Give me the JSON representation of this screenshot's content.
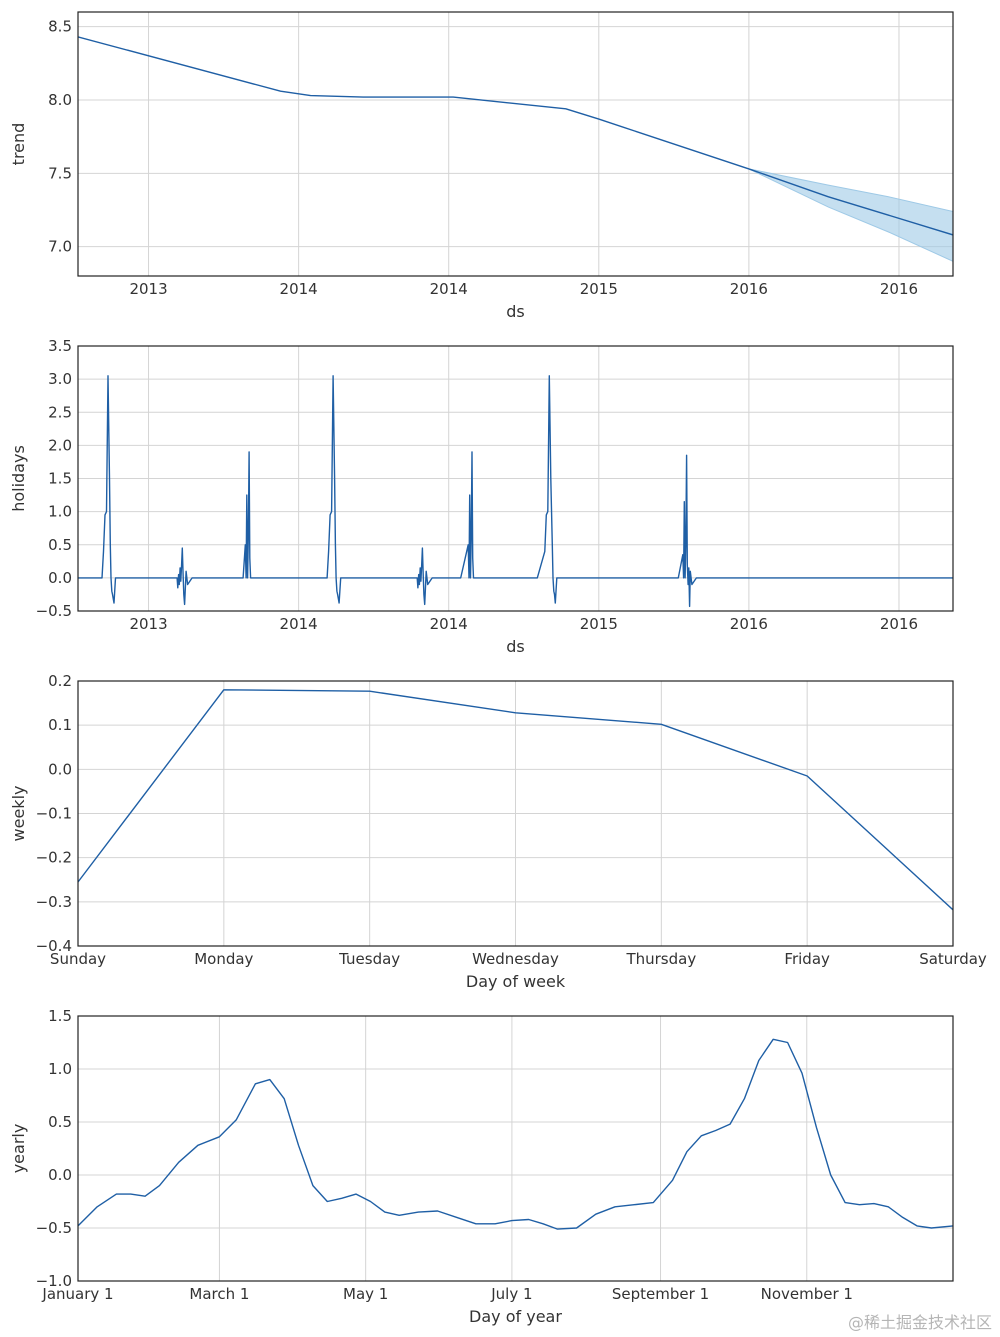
{
  "colors": {
    "line": "#1f5fa5",
    "band": "#9ec9e6",
    "grid": "#d4d4d4",
    "frame": "#222222"
  },
  "watermark": "@稀土掘金技术社区",
  "chart_data": [
    {
      "id": "trend",
      "type": "line",
      "ylabel": "trend",
      "xlabel": "ds",
      "xlim": [
        0,
        5.83
      ],
      "ylim": [
        6.8,
        8.6
      ],
      "xtick_labels": [
        "2013",
        "2014",
        "2014",
        "2015",
        "2016",
        "2016"
      ],
      "xtick_positions": [
        0.47,
        1.47,
        2.47,
        3.47,
        4.47,
        5.47
      ],
      "ytick_labels": [
        "7.0",
        "7.5",
        "8.0",
        "8.5"
      ],
      "ytick_values": [
        7.0,
        7.5,
        8.0,
        8.5
      ],
      "series": [
        {
          "name": "trend",
          "x": [
            0,
            1.35,
            1.55,
            1.9,
            2.5,
            3.25,
            3.47,
            4.47,
            5.0,
            5.83
          ],
          "y": [
            8.43,
            8.06,
            8.03,
            8.02,
            8.02,
            7.94,
            7.87,
            7.53,
            7.34,
            7.08
          ]
        }
      ],
      "uncertainty_band": {
        "x": [
          4.47,
          5.0,
          5.4,
          5.83
        ],
        "upper": [
          7.53,
          7.42,
          7.34,
          7.24
        ],
        "lower": [
          7.53,
          7.27,
          7.1,
          6.9
        ]
      }
    },
    {
      "id": "holidays",
      "type": "line",
      "ylabel": "holidays",
      "xlabel": "ds",
      "xlim": [
        0,
        5.83
      ],
      "ylim": [
        -0.5,
        3.5
      ],
      "xtick_labels": [
        "2013",
        "2014",
        "2014",
        "2015",
        "2016",
        "2016"
      ],
      "xtick_positions": [
        0.47,
        1.47,
        2.47,
        3.47,
        4.47,
        5.47
      ],
      "ytick_labels": [
        "−0.5",
        "0.0",
        "0.5",
        "1.0",
        "1.5",
        "2.0",
        "2.5",
        "3.0",
        "3.5"
      ],
      "ytick_values": [
        -0.5,
        0,
        0.5,
        1.0,
        1.5,
        2.0,
        2.5,
        3.0,
        3.5
      ],
      "series": [
        {
          "name": "holidays",
          "x": [
            0,
            0.16,
            0.17,
            0.18,
            0.19,
            0.2,
            0.21,
            0.215,
            0.22,
            0.225,
            0.23,
            0.24,
            0.25,
            0.26,
            0.27,
            0.28,
            0.29,
            0.3,
            0.6,
            0.66,
            0.665,
            0.67,
            0.675,
            0.68,
            0.685,
            0.69,
            0.695,
            0.7,
            0.705,
            0.71,
            0.72,
            0.73,
            0.76,
            1.1,
            1.115,
            1.12,
            1.125,
            1.13,
            1.135,
            1.14,
            1.145,
            1.15,
            1.155,
            1.16,
            1.17,
            1.2,
            1.61,
            1.66,
            1.67,
            1.68,
            1.69,
            1.7,
            1.71,
            1.715,
            1.72,
            1.725,
            1.73,
            1.74,
            1.75,
            1.76,
            1.77,
            1.78,
            1.79,
            1.8,
            2.2,
            2.26,
            2.265,
            2.27,
            2.275,
            2.28,
            2.285,
            2.29,
            2.295,
            2.3,
            2.305,
            2.31,
            2.32,
            2.33,
            2.36,
            2.55,
            2.6,
            2.605,
            2.61,
            2.615,
            2.62,
            2.625,
            2.63,
            2.635,
            2.64,
            2.645,
            2.65,
            2.66,
            2.7,
            3.06,
            3.11,
            3.12,
            3.13,
            3.14,
            3.15,
            3.16,
            3.165,
            3.17,
            3.175,
            3.18,
            3.19,
            3.2,
            3.21,
            3.22,
            3.23,
            3.24,
            3.25,
            4.0,
            4.03,
            4.035,
            4.04,
            4.045,
            4.05,
            4.055,
            4.06,
            4.065,
            4.07,
            4.075,
            4.08,
            4.09,
            4.12,
            5.83
          ],
          "y": [
            0,
            0,
            0.4,
            0.95,
            1.0,
            3.05,
            1.5,
            0.5,
            0.0,
            -0.2,
            -0.25,
            -0.38,
            0.0,
            0.0,
            0.0,
            0.0,
            0.0,
            0.0,
            0.0,
            0.0,
            -0.15,
            0.05,
            -0.1,
            0.15,
            -0.05,
            0.2,
            0.45,
            0.05,
            -0.25,
            -0.4,
            0.1,
            -0.1,
            0.0,
            0.0,
            0.5,
            0.0,
            1.25,
            0.0,
            0.6,
            1.9,
            0.3,
            0.0,
            0.0,
            0.0,
            0.0,
            0.0,
            0.0,
            0.0,
            0.4,
            0.95,
            1.0,
            3.05,
            1.5,
            0.5,
            0.0,
            -0.2,
            -0.25,
            -0.38,
            0.0,
            0.0,
            0.0,
            0.0,
            0.0,
            0.0,
            0.0,
            0.0,
            -0.15,
            0.05,
            -0.1,
            0.15,
            -0.05,
            0.2,
            0.45,
            0.05,
            -0.25,
            -0.4,
            0.1,
            -0.1,
            0.0,
            0.0,
            0.5,
            0.0,
            1.25,
            0.0,
            0.6,
            1.9,
            0.3,
            0.0,
            0.0,
            0.0,
            0.0,
            0.0,
            0.0,
            0.0,
            0.4,
            0.95,
            1.0,
            3.05,
            1.5,
            0.5,
            0.0,
            -0.2,
            -0.25,
            -0.38,
            0.0,
            0.0,
            0.0,
            0.0,
            0.0,
            0.0,
            0.0,
            0.0,
            0.35,
            0.0,
            1.15,
            0.0,
            0.5,
            1.85,
            0.2,
            -0.1,
            0.15,
            -0.43,
            0.1,
            -0.1,
            0.0,
            0.0
          ]
        }
      ]
    },
    {
      "id": "weekly",
      "type": "line",
      "ylabel": "weekly",
      "xlabel": "Day of week",
      "xlim": [
        0,
        6
      ],
      "ylim": [
        -0.4,
        0.2
      ],
      "xtick_labels": [
        "Sunday",
        "Monday",
        "Tuesday",
        "Wednesday",
        "Thursday",
        "Friday",
        "Saturday"
      ],
      "xtick_positions": [
        0,
        1,
        2,
        3,
        4,
        5,
        6
      ],
      "ytick_labels": [
        "−0.4",
        "−0.3",
        "−0.2",
        "−0.1",
        "0.0",
        "0.1",
        "0.2"
      ],
      "ytick_values": [
        -0.4,
        -0.3,
        -0.2,
        -0.1,
        0.0,
        0.1,
        0.2
      ],
      "series": [
        {
          "name": "weekly",
          "x": [
            0,
            1,
            2,
            3,
            4,
            5,
            6
          ],
          "y": [
            -0.255,
            0.18,
            0.177,
            0.128,
            0.102,
            -0.015,
            -0.318
          ]
        }
      ]
    },
    {
      "id": "yearly",
      "type": "line",
      "ylabel": "yearly",
      "xlabel": "Day of year",
      "xlim": [
        0,
        365
      ],
      "ylim": [
        -1.0,
        1.5
      ],
      "xtick_labels": [
        "January 1",
        "March 1",
        "May 1",
        "July 1",
        "September 1",
        "November 1"
      ],
      "xtick_positions": [
        0,
        59,
        120,
        181,
        243,
        304
      ],
      "ytick_labels": [
        "−1.0",
        "−0.5",
        "0.0",
        "0.5",
        "1.0",
        "1.5"
      ],
      "ytick_values": [
        -1.0,
        -0.5,
        0.0,
        0.5,
        1.0,
        1.5
      ],
      "series": [
        {
          "name": "yearly",
          "x": [
            0,
            8,
            16,
            22,
            28,
            34,
            42,
            50,
            59,
            66,
            74,
            80,
            86,
            92,
            98,
            104,
            110,
            116,
            122,
            128,
            134,
            142,
            150,
            158,
            166,
            174,
            181,
            188,
            194,
            200,
            208,
            216,
            224,
            232,
            240,
            248,
            254,
            260,
            266,
            272,
            278,
            284,
            290,
            296,
            302,
            308,
            314,
            320,
            326,
            332,
            338,
            344,
            350,
            356,
            365
          ],
          "y": [
            -0.48,
            -0.3,
            -0.18,
            -0.18,
            -0.2,
            -0.1,
            0.12,
            0.28,
            0.36,
            0.52,
            0.86,
            0.9,
            0.72,
            0.28,
            -0.1,
            -0.25,
            -0.22,
            -0.18,
            -0.25,
            -0.35,
            -0.38,
            -0.35,
            -0.34,
            -0.4,
            -0.46,
            -0.46,
            -0.43,
            -0.42,
            -0.46,
            -0.51,
            -0.5,
            -0.37,
            -0.3,
            -0.28,
            -0.26,
            -0.05,
            0.22,
            0.37,
            0.42,
            0.48,
            0.72,
            1.08,
            1.28,
            1.25,
            0.96,
            0.45,
            0.0,
            -0.26,
            -0.28,
            -0.27,
            -0.3,
            -0.4,
            -0.48,
            -0.5,
            -0.48
          ]
        }
      ]
    }
  ]
}
